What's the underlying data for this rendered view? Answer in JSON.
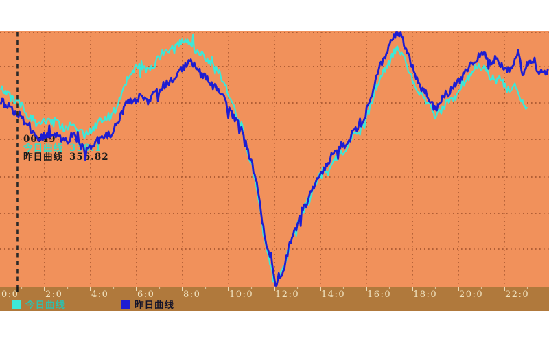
{
  "chart": {
    "background_color": "#f1915b",
    "band_color": "#b0793c",
    "grid_color": "#9c4e29",
    "axis_label_color": "#f0e2bf",
    "crosshair_color": "#2a2a2a",
    "crosshair_hour": 0.82,
    "tooltip": {
      "time": "00:49",
      "today_label": "今日曲线",
      "today_value": "358.1",
      "today_color": "#35e0c8",
      "yesterday_label": "昨日曲线",
      "yesterday_value": "356.82",
      "text_color": "#1b1b1b"
    },
    "legend": {
      "today_label": "今日曲线",
      "today_swatch_color": "#3ce8d8",
      "today_text_color": "#2fbfae",
      "yesterday_label": "昨日曲线",
      "yesterday_swatch_color": "#1d1dd2",
      "yesterday_text_color": "#15152a"
    }
  },
  "chart_data": {
    "type": "line",
    "title": "",
    "xlabel": "",
    "ylabel": "",
    "x_axis": {
      "unit": "hours",
      "range_hours": [
        0,
        24
      ],
      "tick_hours": [
        0,
        2,
        4,
        6,
        8,
        10,
        12,
        14,
        16,
        18,
        20,
        22
      ],
      "tick_labels": [
        "0:0",
        "2:0",
        "4:0",
        "6:0",
        "8:0",
        "10:0",
        "12:0",
        "14:0",
        "16:0",
        "18:0",
        "20:0",
        "22:0"
      ],
      "minor_tick_every_hours": 1
    },
    "y_axis": {
      "labels_visible": false,
      "approx_value_range": [
        333,
        369
      ],
      "horizontal_gridlines": 7
    },
    "grid": "dotted",
    "legend_position": "bottom",
    "annotations": {
      "crosshair_time": "00:49",
      "today_at_crosshair": "358.1",
      "yesterday_at_crosshair": "356.82"
    },
    "series": [
      {
        "name": "今日曲线",
        "color": "#3ce8d8",
        "points": [
          [
            0.1,
            360.0
          ],
          [
            0.4,
            359.4
          ],
          [
            0.7,
            358.7
          ],
          [
            0.9,
            358.3
          ],
          [
            1.1,
            357.5
          ],
          [
            1.4,
            356.4
          ],
          [
            1.7,
            355.2
          ],
          [
            2.0,
            355.9
          ],
          [
            2.3,
            355.7
          ],
          [
            2.6,
            355.3
          ],
          [
            2.9,
            354.8
          ],
          [
            3.2,
            355.3
          ],
          [
            3.5,
            354.9
          ],
          [
            3.8,
            354.0
          ],
          [
            4.1,
            354.5
          ],
          [
            4.4,
            355.5
          ],
          [
            4.7,
            356.2
          ],
          [
            5.0,
            356.6
          ],
          [
            5.3,
            359.2
          ],
          [
            5.6,
            361.6
          ],
          [
            5.9,
            363.0
          ],
          [
            6.2,
            363.4
          ],
          [
            6.5,
            363.0
          ],
          [
            6.8,
            363.4
          ],
          [
            7.1,
            364.9
          ],
          [
            7.4,
            365.3
          ],
          [
            7.7,
            366.0
          ],
          [
            8.0,
            366.5
          ],
          [
            8.3,
            366.9
          ],
          [
            8.6,
            365.6
          ],
          [
            8.9,
            364.9
          ],
          [
            9.2,
            363.4
          ],
          [
            9.5,
            362.5
          ],
          [
            9.8,
            361.3
          ],
          [
            10.1,
            358.3
          ],
          [
            10.4,
            356.2
          ],
          [
            10.6,
            354.7
          ],
          [
            10.7,
            353.1
          ],
          [
            11.0,
            350.3
          ],
          [
            11.2,
            347.2
          ],
          [
            11.4,
            343.2
          ],
          [
            11.6,
            339.0
          ],
          [
            11.9,
            335.7
          ],
          [
            12.0,
            334.0
          ],
          [
            12.1,
            333.4
          ],
          [
            12.2,
            334.6
          ],
          [
            12.4,
            335.7
          ],
          [
            12.5,
            337.0
          ],
          [
            12.7,
            339.2
          ],
          [
            13.0,
            341.3
          ],
          [
            13.2,
            343.2
          ],
          [
            13.5,
            344.9
          ],
          [
            13.7,
            347.0
          ],
          [
            13.9,
            348.1
          ],
          [
            14.1,
            349.1
          ],
          [
            14.3,
            348.9
          ],
          [
            14.5,
            350.6
          ],
          [
            14.7,
            351.2
          ],
          [
            14.9,
            352.4
          ],
          [
            15.1,
            351.9
          ],
          [
            15.3,
            353.1
          ],
          [
            15.5,
            354.0
          ],
          [
            15.7,
            354.5
          ],
          [
            15.9,
            355.3
          ],
          [
            16.2,
            358.3
          ],
          [
            16.4,
            360.3
          ],
          [
            16.6,
            361.9
          ],
          [
            16.8,
            363.0
          ],
          [
            17.1,
            364.7
          ],
          [
            17.3,
            365.6
          ],
          [
            17.5,
            365.3
          ],
          [
            17.6,
            364.9
          ],
          [
            17.8,
            362.8
          ],
          [
            18.1,
            360.9
          ],
          [
            18.3,
            359.4
          ],
          [
            18.6,
            358.3
          ],
          [
            18.8,
            357.2
          ],
          [
            19.0,
            356.2
          ],
          [
            19.3,
            357.5
          ],
          [
            19.5,
            358.3
          ],
          [
            19.8,
            358.7
          ],
          [
            20.0,
            359.7
          ],
          [
            20.2,
            360.9
          ],
          [
            20.5,
            362.0
          ],
          [
            20.7,
            362.8
          ],
          [
            21.0,
            363.4
          ],
          [
            21.2,
            363.0
          ],
          [
            21.4,
            361.9
          ],
          [
            21.6,
            361.1
          ],
          [
            21.8,
            361.6
          ],
          [
            22.0,
            360.3
          ],
          [
            22.2,
            360.0
          ],
          [
            22.4,
            360.6
          ],
          [
            22.6,
            359.7
          ],
          [
            22.7,
            359.0
          ],
          [
            22.9,
            358.3
          ],
          [
            23.0,
            358.1
          ]
        ]
      },
      {
        "name": "昨日曲线",
        "color": "#1d1dd2",
        "points": [
          [
            0.1,
            358.5
          ],
          [
            0.4,
            358.1
          ],
          [
            0.7,
            357.3
          ],
          [
            0.9,
            356.8
          ],
          [
            1.1,
            355.9
          ],
          [
            1.4,
            354.7
          ],
          [
            1.7,
            353.6
          ],
          [
            2.0,
            354.2
          ],
          [
            2.3,
            353.9
          ],
          [
            2.6,
            353.6
          ],
          [
            2.9,
            353.1
          ],
          [
            3.2,
            353.6
          ],
          [
            3.5,
            353.1
          ],
          [
            3.8,
            352.2
          ],
          [
            4.1,
            352.6
          ],
          [
            4.4,
            353.6
          ],
          [
            4.7,
            354.0
          ],
          [
            5.0,
            354.5
          ],
          [
            5.3,
            356.4
          ],
          [
            5.6,
            358.3
          ],
          [
            5.9,
            358.7
          ],
          [
            6.2,
            359.2
          ],
          [
            6.5,
            358.3
          ],
          [
            6.8,
            359.7
          ],
          [
            7.1,
            360.6
          ],
          [
            7.4,
            361.3
          ],
          [
            7.7,
            361.9
          ],
          [
            8.0,
            363.0
          ],
          [
            8.3,
            364.1
          ],
          [
            8.6,
            363.0
          ],
          [
            8.9,
            362.0
          ],
          [
            9.2,
            361.1
          ],
          [
            9.5,
            360.2
          ],
          [
            9.8,
            359.2
          ],
          [
            10.1,
            356.9
          ],
          [
            10.4,
            355.5
          ],
          [
            10.6,
            354.5
          ],
          [
            10.7,
            353.1
          ],
          [
            11.0,
            350.3
          ],
          [
            11.2,
            347.5
          ],
          [
            11.4,
            343.7
          ],
          [
            11.6,
            339.5
          ],
          [
            11.9,
            336.2
          ],
          [
            12.0,
            334.3
          ],
          [
            12.1,
            333.6
          ],
          [
            12.2,
            334.8
          ],
          [
            12.4,
            335.9
          ],
          [
            12.5,
            337.3
          ],
          [
            12.7,
            339.5
          ],
          [
            13.0,
            341.6
          ],
          [
            13.2,
            343.4
          ],
          [
            13.5,
            345.1
          ],
          [
            13.7,
            346.8
          ],
          [
            13.9,
            347.7
          ],
          [
            14.1,
            348.9
          ],
          [
            14.3,
            349.2
          ],
          [
            14.5,
            350.8
          ],
          [
            14.7,
            351.5
          ],
          [
            14.9,
            352.6
          ],
          [
            15.1,
            352.2
          ],
          [
            15.3,
            353.6
          ],
          [
            15.5,
            354.6
          ],
          [
            15.7,
            355.3
          ],
          [
            15.9,
            356.2
          ],
          [
            16.2,
            359.2
          ],
          [
            16.4,
            361.3
          ],
          [
            16.6,
            363.0
          ],
          [
            16.8,
            364.4
          ],
          [
            17.1,
            366.3
          ],
          [
            17.3,
            367.5
          ],
          [
            17.5,
            367.9
          ],
          [
            17.6,
            366.9
          ],
          [
            17.8,
            364.4
          ],
          [
            18.1,
            362.2
          ],
          [
            18.3,
            360.6
          ],
          [
            18.6,
            359.7
          ],
          [
            18.8,
            358.5
          ],
          [
            19.0,
            357.5
          ],
          [
            19.3,
            359.0
          ],
          [
            19.5,
            359.4
          ],
          [
            19.8,
            360.3
          ],
          [
            20.0,
            361.3
          ],
          [
            20.2,
            362.2
          ],
          [
            20.5,
            363.4
          ],
          [
            20.7,
            364.4
          ],
          [
            21.0,
            365.0
          ],
          [
            21.2,
            364.9
          ],
          [
            21.4,
            363.7
          ],
          [
            21.6,
            364.4
          ],
          [
            21.8,
            363.4
          ],
          [
            22.0,
            363.3
          ],
          [
            22.2,
            362.8
          ],
          [
            22.4,
            363.7
          ],
          [
            22.6,
            364.9
          ],
          [
            22.8,
            362.2
          ],
          [
            23.0,
            363.4
          ],
          [
            23.3,
            364.4
          ],
          [
            23.4,
            362.2
          ],
          [
            23.6,
            362.7
          ],
          [
            23.8,
            361.9
          ],
          [
            23.9,
            362.2
          ]
        ]
      }
    ]
  }
}
